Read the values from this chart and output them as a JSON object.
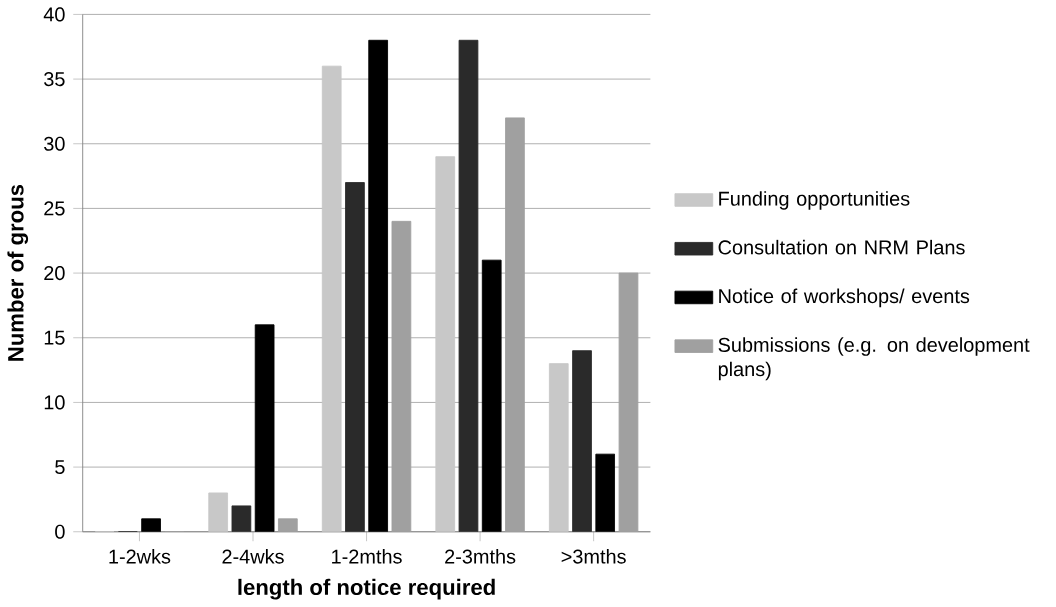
{
  "chart_data": {
    "type": "bar",
    "xlabel": "length of notice required",
    "ylabel": "Number of grous",
    "categories": [
      "1-2wks",
      "2-4wks",
      "1-2mths",
      "2-3mths",
      ">3mths"
    ],
    "series": [
      {
        "name": "Funding opportunities",
        "color": "#c8c8c8",
        "values": [
          0,
          3,
          36,
          29,
          13
        ]
      },
      {
        "name": "Consultation on NRM Plans",
        "color": "#2a2a2a",
        "values": [
          0,
          2,
          27,
          38,
          14
        ]
      },
      {
        "name": "Notice of workshops/ events",
        "color": "#000000",
        "values": [
          1,
          16,
          38,
          21,
          6
        ]
      },
      {
        "name": "Submissions (e.g. on development plans)",
        "color": "#a0a0a0",
        "values": [
          0,
          1,
          24,
          32,
          20
        ]
      }
    ],
    "ylim": [
      0,
      40
    ],
    "yticks": [
      0,
      5,
      10,
      15,
      20,
      25,
      30,
      35,
      40
    ],
    "grid": "y",
    "legend": "right"
  }
}
